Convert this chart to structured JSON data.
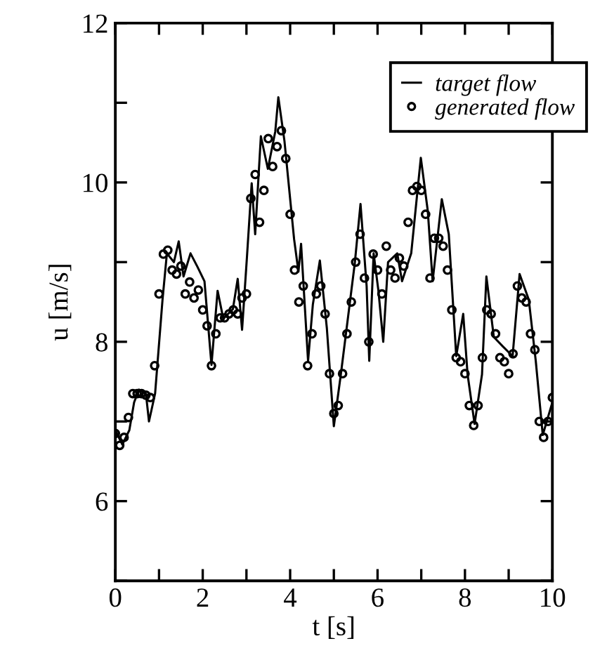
{
  "chart_data": {
    "type": "line",
    "xlabel": "t [s]",
    "ylabel": "u [m/s]",
    "xlim": [
      0,
      10
    ],
    "ylim": [
      5,
      12
    ],
    "xticks": [
      0,
      {
        "value": 1,
        "label": null
      },
      2,
      {
        "value": 3,
        "label": null
      },
      4,
      {
        "value": 5,
        "label": null
      },
      6,
      {
        "value": 7,
        "label": null
      },
      8,
      {
        "value": 9,
        "label": null
      },
      10
    ],
    "yticks": [
      {
        "value": 5,
        "label": null
      },
      6,
      {
        "value": 7,
        "label": null
      },
      8,
      {
        "value": 9,
        "label": null
      },
      10,
      {
        "value": 11,
        "label": null
      },
      12
    ],
    "grid": false,
    "legend": "top right",
    "series": [
      {
        "name": "target flow",
        "color": "#000000",
        "marker": "none",
        "line_style": "solid",
        "x": [
          0,
          0.16,
          0.32,
          0.43,
          0.54,
          0.7,
          0.77,
          0.91,
          1.08,
          1.18,
          1.34,
          1.45,
          1.56,
          1.72,
          1.88,
          2.04,
          2.2,
          2.34,
          2.47,
          2.69,
          2.8,
          2.9,
          3.01,
          3.12,
          3.2,
          3.33,
          3.49,
          3.66,
          3.73,
          3.87,
          4.09,
          4.19,
          4.25,
          4.41,
          4.52,
          4.68,
          4.84,
          5.0,
          5.16,
          5.48,
          5.61,
          5.75,
          5.81,
          5.91,
          6.02,
          6.13,
          6.24,
          6.45,
          6.56,
          6.77,
          6.99,
          7.15,
          7.26,
          7.47,
          7.63,
          7.8,
          7.96,
          8.06,
          8.22,
          8.39,
          8.49,
          8.66,
          8.87,
          9.09,
          9.25,
          9.46,
          9.62,
          9.78,
          10.0
        ],
        "values": [
          6.89,
          6.71,
          6.89,
          7.24,
          7.4,
          7.35,
          7.0,
          7.35,
          8.53,
          9.11,
          9.0,
          9.26,
          8.82,
          9.11,
          8.94,
          8.76,
          7.71,
          8.64,
          8.29,
          8.41,
          8.79,
          8.15,
          9.05,
          9.99,
          9.35,
          10.58,
          10.17,
          10.64,
          11.07,
          10.52,
          9.29,
          8.88,
          9.23,
          7.76,
          8.47,
          9.02,
          8.17,
          6.94,
          7.59,
          8.99,
          9.73,
          8.7,
          7.76,
          9.11,
          8.64,
          8.0,
          9.0,
          9.11,
          8.76,
          9.11,
          10.31,
          9.64,
          8.76,
          9.79,
          9.35,
          7.82,
          8.35,
          7.59,
          6.97,
          7.59,
          8.82,
          8.06,
          7.94,
          7.82,
          8.85,
          8.53,
          7.76,
          6.83,
          7.24
        ]
      },
      {
        "name": "generated flow",
        "type": "scatter",
        "color": "#000000",
        "marker": "circle",
        "x": [
          0,
          0.1,
          0.2,
          0.3,
          0.4,
          0.5,
          0.6,
          0.7,
          0.8,
          0.9,
          1.0,
          1.1,
          1.2,
          1.3,
          1.4,
          1.5,
          1.6,
          1.7,
          1.8,
          1.9,
          2.0,
          2.1,
          2.2,
          2.3,
          2.4,
          2.5,
          2.6,
          2.7,
          2.8,
          2.9,
          3.0,
          3.1,
          3.2,
          3.3,
          3.4,
          3.5,
          3.6,
          3.7,
          3.8,
          3.9,
          4.0,
          4.1,
          4.2,
          4.3,
          4.4,
          4.5,
          4.6,
          4.7,
          4.8,
          4.9,
          5.0,
          5.1,
          5.2,
          5.3,
          5.4,
          5.5,
          5.6,
          5.7,
          5.8,
          5.9,
          6.0,
          6.1,
          6.2,
          6.3,
          6.4,
          6.5,
          6.6,
          6.7,
          6.8,
          6.9,
          7.0,
          7.1,
          7.2,
          7.3,
          7.4,
          7.5,
          7.6,
          7.7,
          7.8,
          7.9,
          8.0,
          8.1,
          8.2,
          8.3,
          8.4,
          8.5,
          8.6,
          8.7,
          8.8,
          8.9,
          9.0,
          9.1,
          9.2,
          9.3,
          9.4,
          9.5,
          9.6,
          9.7,
          9.8,
          9.9,
          10.0
        ],
        "values": [
          6.85,
          6.7,
          6.8,
          7.05,
          7.35,
          7.35,
          7.35,
          7.33,
          7.3,
          7.7,
          8.6,
          9.1,
          9.15,
          8.9,
          8.85,
          8.95,
          8.6,
          8.75,
          8.55,
          8.65,
          8.4,
          8.2,
          7.7,
          8.1,
          8.3,
          8.3,
          8.35,
          8.4,
          8.35,
          8.55,
          8.6,
          9.8,
          10.1,
          9.5,
          9.9,
          10.55,
          10.2,
          10.45,
          10.65,
          10.3,
          9.6,
          8.9,
          8.5,
          8.7,
          7.7,
          8.1,
          8.6,
          8.7,
          8.35,
          7.6,
          7.1,
          7.2,
          7.6,
          8.1,
          8.5,
          9.0,
          9.35,
          8.8,
          8.0,
          9.1,
          8.9,
          8.6,
          9.2,
          8.9,
          8.8,
          9.05,
          8.95,
          9.5,
          9.9,
          9.95,
          9.9,
          9.6,
          8.8,
          9.3,
          9.3,
          9.2,
          8.9,
          8.4,
          7.8,
          7.75,
          7.6,
          7.2,
          6.95,
          7.2,
          7.8,
          8.4,
          8.35,
          8.1,
          7.8,
          7.75,
          7.6,
          7.85,
          8.7,
          8.55,
          8.5,
          8.1,
          7.9,
          7.0,
          6.8,
          7.0,
          7.3
        ]
      }
    ]
  }
}
